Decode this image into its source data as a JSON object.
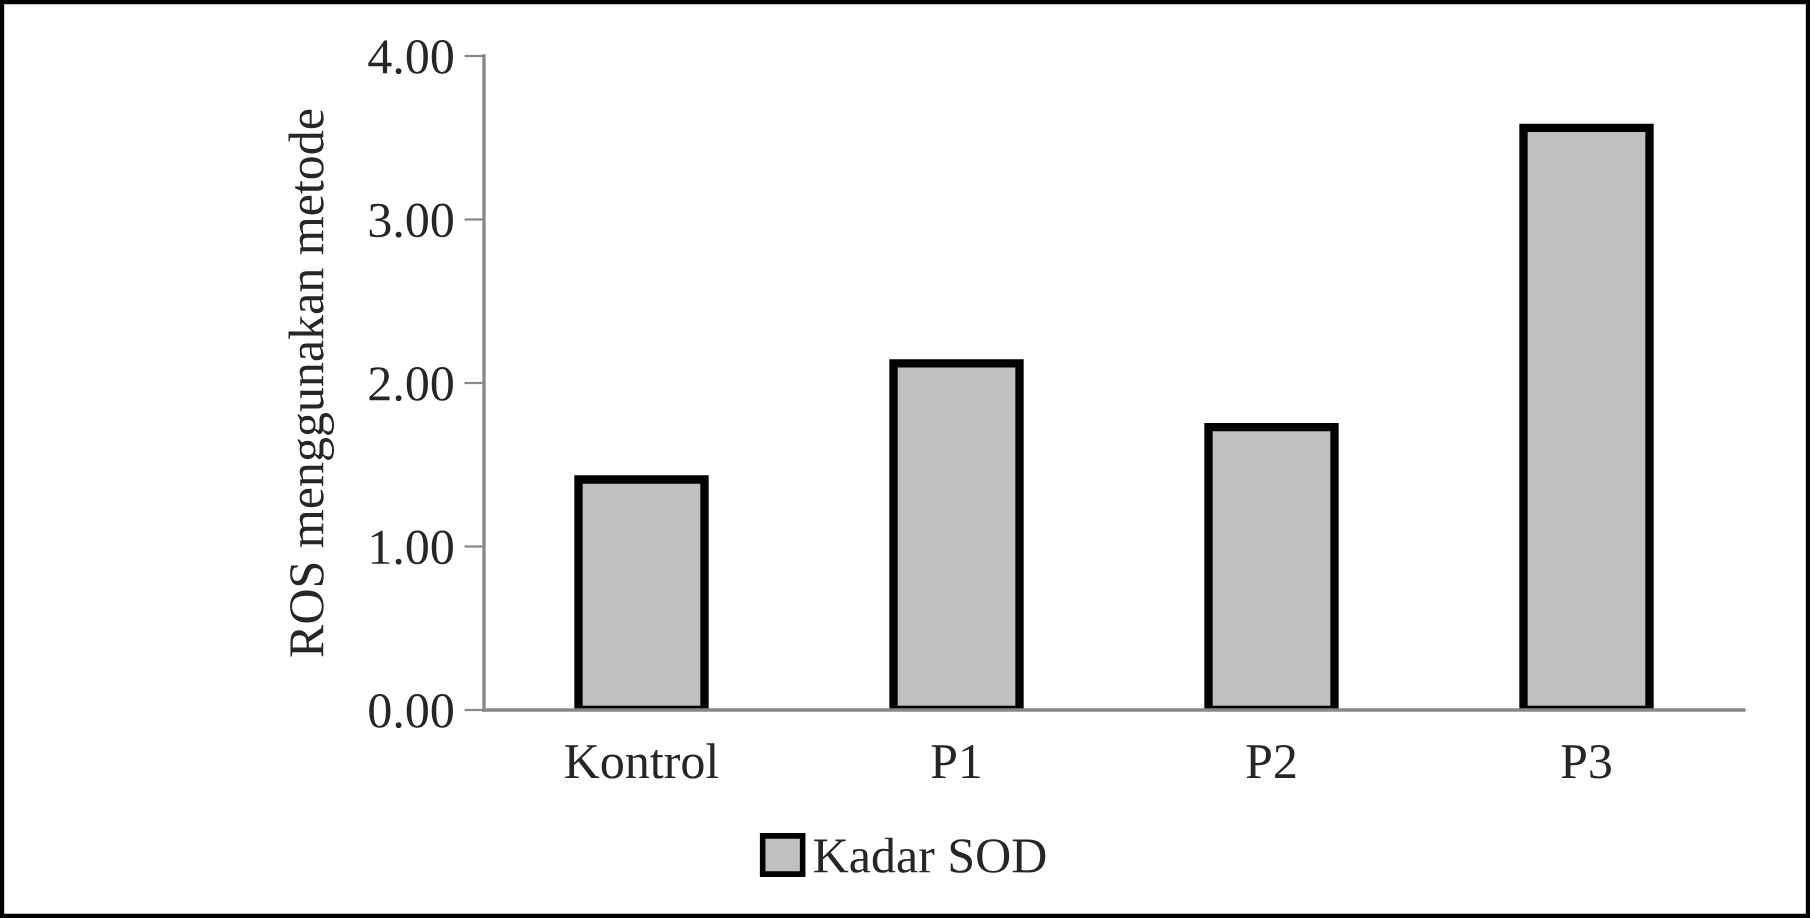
{
  "chart_data": {
    "type": "bar",
    "ylabel": "ROS menggunakan metode",
    "categories": [
      "Kontrol",
      "P1",
      "P2",
      "P3"
    ],
    "series": [
      {
        "name": "Kadar SOD",
        "color": "#c0c0c0",
        "values": [
          1.41,
          2.12,
          1.73,
          3.56
        ]
      }
    ],
    "ylim": [
      0,
      4
    ],
    "yticks": [
      {
        "value": 0,
        "label": "0.00"
      },
      {
        "value": 1,
        "label": "1.00"
      },
      {
        "value": 2,
        "label": "2.00"
      },
      {
        "value": 3,
        "label": "3.00"
      },
      {
        "value": 4,
        "label": "4.00"
      }
    ],
    "grid": false,
    "legend": "bottom"
  }
}
